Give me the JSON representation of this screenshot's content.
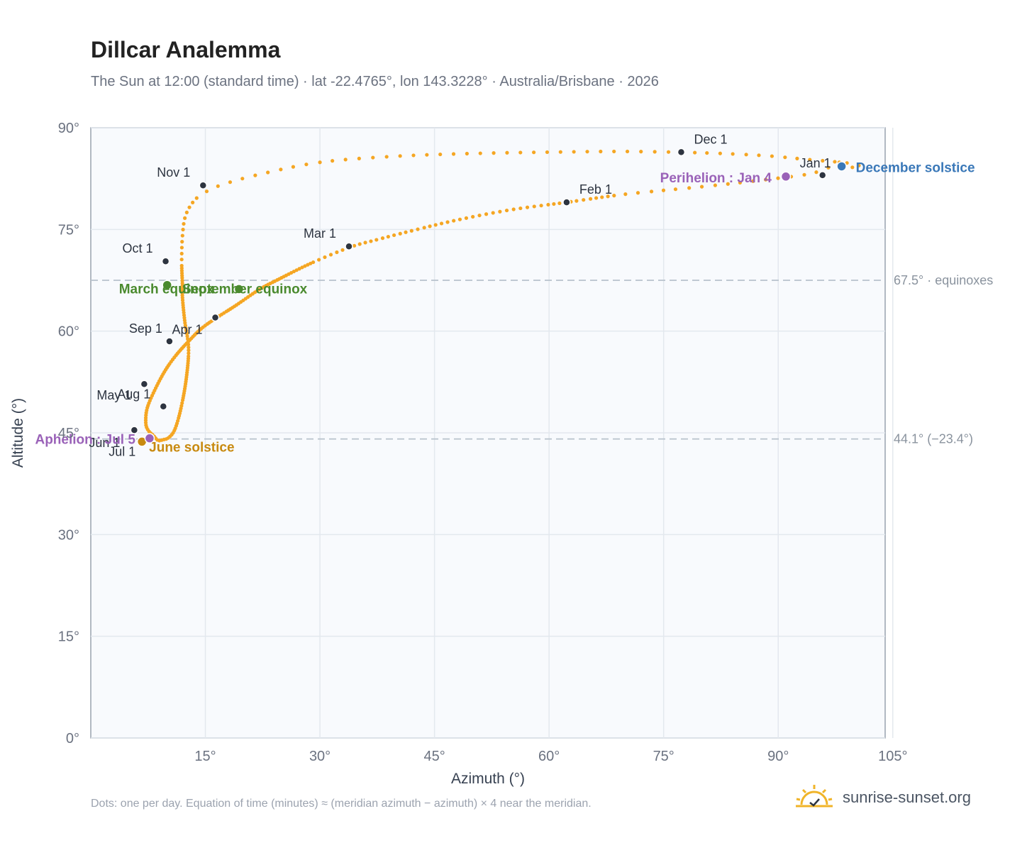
{
  "header": {
    "title": "Dillcar Analemma",
    "subtitle": "The Sun at 12:00 (standard time) · lat -22.4765°, lon 143.3228° · Australia/Brisbane · 2026"
  },
  "footer": {
    "note": "Dots: one per day. Equation of time (minutes) ≈ (meridian azimuth − azimuth) × 4 near the meridian.",
    "brand": "sunrise-sunset.org"
  },
  "colors": {
    "path": "#f5a623",
    "month_dot": "#2d3440",
    "equinox": "#4a8a2e",
    "june_solstice": "#c88a10",
    "december_solstice": "#3a78b8",
    "perihelion_aphelion": "#9a62b8",
    "plot_bg": "#f8fafd",
    "grid": "#e3e8ee",
    "axis": "#98a2ae",
    "tick_text": "#6b7280"
  },
  "chart_data": {
    "type": "scatter",
    "title": "Dillcar Analemma",
    "xlabel": "Azimuth (°)",
    "ylabel": "Altitude (°)",
    "xlim": [
      0,
      104
    ],
    "ylim": [
      0,
      90
    ],
    "x_ticks": [
      15,
      30,
      45,
      60,
      75,
      90,
      105
    ],
    "y_ticks": [
      0,
      15,
      30,
      45,
      60,
      75,
      90
    ],
    "x_tick_labels": [
      "15°",
      "30°",
      "45°",
      "60°",
      "75°",
      "90°",
      "105°"
    ],
    "y_tick_labels": [
      "0°",
      "15°",
      "30°",
      "45°",
      "60°",
      "75°",
      "90°"
    ],
    "grid": true,
    "reference_lines": [
      {
        "y": 67.5,
        "label": "67.5° · equinoxes"
      },
      {
        "y": 44.1,
        "label": "44.1° (−23.4°)"
      }
    ],
    "daily_path": [
      {
        "x": 98.0,
        "y": 84.9
      },
      {
        "x": 94.5,
        "y": 83.3
      },
      {
        "x": 88.0,
        "y": 82.3
      },
      {
        "x": 80.0,
        "y": 81.3
      },
      {
        "x": 70.0,
        "y": 80.2
      },
      {
        "x": 62.3,
        "y": 79.0
      },
      {
        "x": 55.0,
        "y": 77.9
      },
      {
        "x": 48.0,
        "y": 76.4
      },
      {
        "x": 42.0,
        "y": 74.8
      },
      {
        "x": 37.5,
        "y": 73.5
      },
      {
        "x": 34.0,
        "y": 72.4
      },
      {
        "x": 29.0,
        "y": 70.1
      },
      {
        "x": 24.5,
        "y": 67.6
      },
      {
        "x": 22.0,
        "y": 66.1
      },
      {
        "x": 19.0,
        "y": 63.8
      },
      {
        "x": 16.5,
        "y": 62.0
      },
      {
        "x": 14.5,
        "y": 60.4
      },
      {
        "x": 12.8,
        "y": 58.5
      },
      {
        "x": 11.2,
        "y": 56.5
      },
      {
        "x": 9.8,
        "y": 54.3
      },
      {
        "x": 8.5,
        "y": 51.6
      },
      {
        "x": 7.4,
        "y": 48.7
      },
      {
        "x": 7.2,
        "y": 46.5
      },
      {
        "x": 7.5,
        "y": 45.4
      },
      {
        "x": 8.2,
        "y": 44.6
      },
      {
        "x": 8.8,
        "y": 43.9
      },
      {
        "x": 9.5,
        "y": 44.0
      },
      {
        "x": 10.2,
        "y": 44.3
      },
      {
        "x": 11.0,
        "y": 45.5
      },
      {
        "x": 11.8,
        "y": 48.6
      },
      {
        "x": 12.5,
        "y": 53.0
      },
      {
        "x": 12.8,
        "y": 57.5
      },
      {
        "x": 12.3,
        "y": 61.5
      },
      {
        "x": 12.0,
        "y": 65.0
      },
      {
        "x": 12.0,
        "y": 66.8
      },
      {
        "x": 11.9,
        "y": 70.2
      },
      {
        "x": 12.0,
        "y": 74.0
      },
      {
        "x": 12.4,
        "y": 77.0
      },
      {
        "x": 13.5,
        "y": 79.2
      },
      {
        "x": 15.0,
        "y": 80.5
      },
      {
        "x": 17.2,
        "y": 81.6
      },
      {
        "x": 22.0,
        "y": 83.1
      },
      {
        "x": 30.0,
        "y": 84.9
      },
      {
        "x": 40.0,
        "y": 85.8
      },
      {
        "x": 50.0,
        "y": 86.2
      },
      {
        "x": 60.0,
        "y": 86.4
      },
      {
        "x": 70.0,
        "y": 86.5
      },
      {
        "x": 80.0,
        "y": 86.3
      },
      {
        "x": 88.0,
        "y": 85.9
      },
      {
        "x": 94.0,
        "y": 85.3
      },
      {
        "x": 99.0,
        "y": 84.8
      },
      {
        "x": 100.8,
        "y": 84.3
      },
      {
        "x": 100.2,
        "y": 84.0
      },
      {
        "x": 98.0,
        "y": 84.9
      }
    ],
    "month_markers": [
      {
        "label": "Jan 1",
        "x": 95.8,
        "y": 83.0
      },
      {
        "label": "Feb 1",
        "x": 62.3,
        "y": 79.0
      },
      {
        "label": "Mar 1",
        "x": 33.8,
        "y": 72.5
      },
      {
        "label": "Apr 1",
        "x": 16.3,
        "y": 62.0
      },
      {
        "label": "May 1",
        "x": 7.0,
        "y": 52.2
      },
      {
        "label": "Jun 1",
        "x": 5.7,
        "y": 45.4
      },
      {
        "label": "Jul 1",
        "x": 6.8,
        "y": 43.7
      },
      {
        "label": "Aug 1",
        "x": 9.5,
        "y": 48.9
      },
      {
        "label": "Sep 1",
        "x": 10.3,
        "y": 58.5
      },
      {
        "label": "Oct 1",
        "x": 9.8,
        "y": 70.3
      },
      {
        "label": "Nov 1",
        "x": 14.7,
        "y": 81.5
      },
      {
        "label": "Dec 1",
        "x": 77.3,
        "y": 86.4
      }
    ],
    "events": [
      {
        "label": "March equinox",
        "x": 10.0,
        "y": 66.8,
        "color_key": "equinox"
      },
      {
        "label": "September equinox",
        "x": 19.4,
        "y": 66.2,
        "color_key": "equinox"
      },
      {
        "label": "June solstice",
        "x": 6.7,
        "y": 43.7,
        "color_key": "june_solstice"
      },
      {
        "label": "December solstice",
        "x": 98.3,
        "y": 84.3,
        "color_key": "december_solstice"
      },
      {
        "label": "Perihelion : Jan 4",
        "x": 91.0,
        "y": 82.8,
        "color_key": "perihelion_aphelion"
      },
      {
        "label": "Aphelion : Jul 5",
        "x": 7.7,
        "y": 44.2,
        "color_key": "perihelion_aphelion"
      }
    ]
  }
}
